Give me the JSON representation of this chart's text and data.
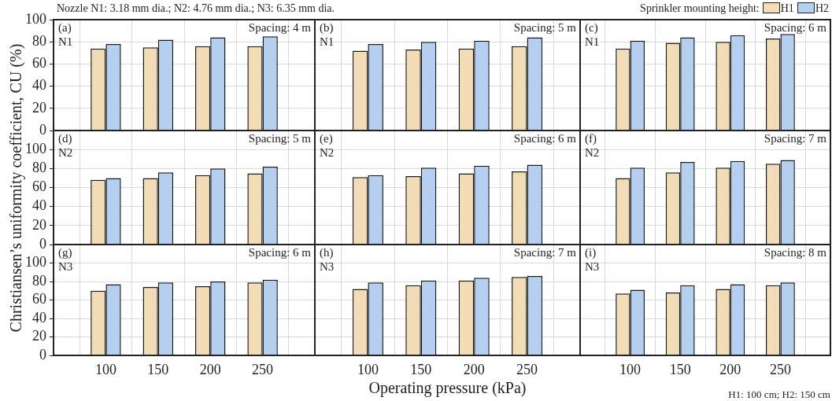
{
  "chart_data": [
    {
      "type": "bar",
      "title": "Nozzle N1: 3.18 mm dia.; N2: 4.76 mm dia.; N3: 6.35 mm dia.",
      "annotations": [
        "(a)",
        "N1",
        "Spacing: 4 m"
      ],
      "x": [
        100,
        150,
        200,
        250
      ],
      "xlim": [
        50,
        300
      ],
      "xticks": [
        100,
        150,
        200,
        250
      ],
      "ylim": [
        0,
        100
      ],
      "yticks": [
        0,
        20,
        40,
        60,
        80,
        100
      ],
      "grid": true,
      "tick_labels": "y",
      "series": [
        {
          "color": "#f2dcb5",
          "values": [
            74,
            75,
            76,
            76
          ]
        },
        {
          "color": "#b4cff0",
          "values": [
            78,
            82,
            84,
            85
          ]
        }
      ]
    },
    {
      "type": "bar",
      "annotations": [
        "(b)",
        "N1",
        "Spacing: 5 m"
      ],
      "x": [
        100,
        150,
        200,
        250
      ],
      "xlim": [
        50,
        300
      ],
      "xticks": [
        100,
        150,
        200,
        250
      ],
      "ylim": [
        0,
        100
      ],
      "yticks": [
        0,
        20,
        40,
        60,
        80,
        100
      ],
      "grid": true,
      "tick_labels": false,
      "series": [
        {
          "color": "#f2dcb5",
          "values": [
            72,
            73,
            74,
            76
          ]
        },
        {
          "color": "#b4cff0",
          "values": [
            78,
            80,
            81,
            84
          ]
        }
      ]
    },
    {
      "type": "bar",
      "annotations": [
        "(c)",
        "N1",
        "Spacing: 6 m"
      ],
      "legend": "top right",
      "legend_title": "Sprinkler mounting height:",
      "x": [
        100,
        150,
        200,
        250
      ],
      "xlim": [
        50,
        300
      ],
      "xticks": [
        100,
        150,
        200,
        250
      ],
      "ylim": [
        0,
        100
      ],
      "yticks": [
        0,
        20,
        40,
        60,
        80,
        100
      ],
      "grid": true,
      "tick_labels": false,
      "series": [
        {
          "name": "H1",
          "color": "#f2dcb5",
          "values": [
            74,
            79,
            80,
            83
          ]
        },
        {
          "name": "H2",
          "color": "#b4cff0",
          "values": [
            81,
            84,
            86,
            87
          ]
        }
      ]
    },
    {
      "type": "bar",
      "ylabel": "Christiansen’s uniformity coefficient, CU (%)",
      "annotations": [
        "(d)",
        "N2",
        "Spacing: 5 m"
      ],
      "x": [
        100,
        150,
        200,
        250
      ],
      "xlim": [
        50,
        300
      ],
      "xticks": [
        100,
        150,
        200,
        250
      ],
      "ylim": [
        0,
        120
      ],
      "yticks": [
        0,
        20,
        40,
        60,
        80,
        100
      ],
      "grid": true,
      "tick_labels": "y",
      "series": [
        {
          "color": "#f2dcb5",
          "values": [
            68,
            70,
            73,
            75
          ]
        },
        {
          "color": "#b4cff0",
          "values": [
            70,
            76,
            80,
            82
          ]
        }
      ]
    },
    {
      "type": "bar",
      "annotations": [
        "(e)",
        "N2",
        "Spacing: 6 m"
      ],
      "x": [
        100,
        150,
        200,
        250
      ],
      "xlim": [
        50,
        300
      ],
      "xticks": [
        100,
        150,
        200,
        250
      ],
      "ylim": [
        0,
        120
      ],
      "yticks": [
        0,
        20,
        40,
        60,
        80,
        100
      ],
      "grid": true,
      "tick_labels": false,
      "series": [
        {
          "color": "#f2dcb5",
          "values": [
            71,
            72,
            75,
            77
          ]
        },
        {
          "color": "#b4cff0",
          "values": [
            73,
            81,
            83,
            84
          ]
        }
      ]
    },
    {
      "type": "bar",
      "annotations": [
        "(f)",
        "N2",
        "Spacing: 7 m"
      ],
      "x": [
        100,
        150,
        200,
        250
      ],
      "xlim": [
        50,
        300
      ],
      "xticks": [
        100,
        150,
        200,
        250
      ],
      "ylim": [
        0,
        120
      ],
      "yticks": [
        0,
        20,
        40,
        60,
        80,
        100
      ],
      "grid": true,
      "tick_labels": false,
      "series": [
        {
          "color": "#f2dcb5",
          "values": [
            70,
            76,
            81,
            85
          ]
        },
        {
          "color": "#b4cff0",
          "values": [
            81,
            87,
            88,
            89
          ]
        }
      ]
    },
    {
      "type": "bar",
      "annotations": [
        "(g)",
        "N3",
        "Spacing: 6 m"
      ],
      "x": [
        100,
        150,
        200,
        250
      ],
      "xlim": [
        50,
        300
      ],
      "xticks": [
        100,
        150,
        200,
        250
      ],
      "ylim": [
        0,
        120
      ],
      "yticks": [
        0,
        20,
        40,
        60,
        80,
        100
      ],
      "grid": true,
      "series": [
        {
          "color": "#f2dcb5",
          "values": [
            70,
            74,
            75,
            79
          ]
        },
        {
          "color": "#b4cff0",
          "values": [
            77,
            79,
            80,
            82
          ]
        }
      ]
    },
    {
      "type": "bar",
      "xlabel": "Operating pressure (kPa)",
      "annotations": [
        "(h)",
        "N3",
        "Spacing: 7 m"
      ],
      "x": [
        100,
        150,
        200,
        250
      ],
      "xlim": [
        50,
        300
      ],
      "xticks": [
        100,
        150,
        200,
        250
      ],
      "ylim": [
        0,
        120
      ],
      "yticks": [
        0,
        20,
        40,
        60,
        80,
        100
      ],
      "grid": true,
      "tick_labels": "x",
      "series": [
        {
          "color": "#f2dcb5",
          "values": [
            72,
            76,
            81,
            85
          ]
        },
        {
          "color": "#b4cff0",
          "values": [
            79,
            81,
            84,
            86
          ]
        }
      ]
    },
    {
      "type": "bar",
      "annotations": [
        "(i)",
        "N3",
        "Spacing: 8 m",
        "H1: 100 cm; H2: 150 cm"
      ],
      "x": [
        100,
        150,
        200,
        250
      ],
      "xlim": [
        50,
        300
      ],
      "xticks": [
        100,
        150,
        200,
        250
      ],
      "ylim": [
        0,
        120
      ],
      "yticks": [
        0,
        20,
        40,
        60,
        80,
        100
      ],
      "grid": true,
      "tick_labels": "x",
      "series": [
        {
          "color": "#f2dcb5",
          "values": [
            67,
            68,
            72,
            76
          ]
        },
        {
          "color": "#b4cff0",
          "values": [
            71,
            76,
            77,
            79
          ]
        }
      ]
    }
  ]
}
